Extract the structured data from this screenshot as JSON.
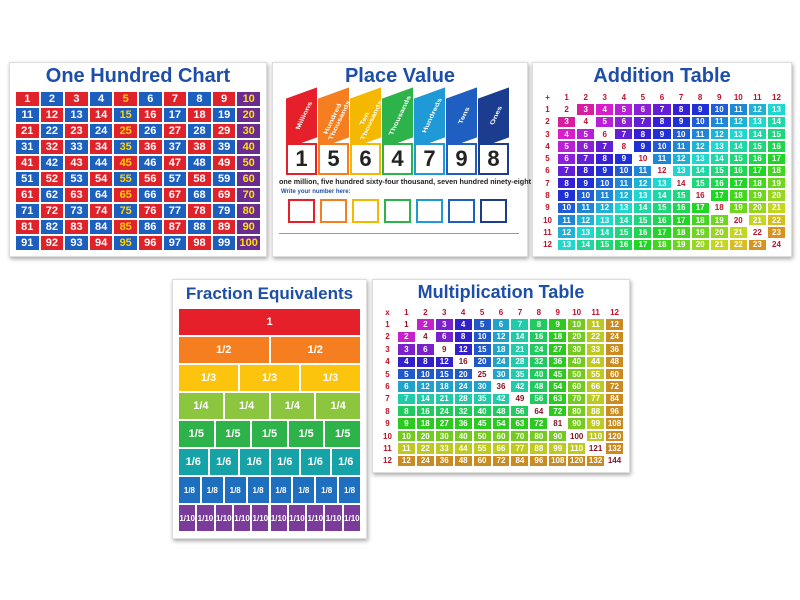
{
  "hundred_chart": {
    "title": "One Hundred Chart",
    "rows": [
      [
        1,
        2,
        3,
        4,
        5,
        6,
        7,
        8,
        9,
        10
      ],
      [
        11,
        12,
        13,
        14,
        15,
        16,
        17,
        18,
        19,
        20
      ],
      [
        21,
        22,
        23,
        24,
        25,
        26,
        27,
        28,
        29,
        30
      ],
      [
        31,
        32,
        33,
        34,
        35,
        36,
        37,
        38,
        39,
        40
      ],
      [
        41,
        42,
        43,
        44,
        45,
        46,
        47,
        48,
        49,
        50
      ],
      [
        51,
        52,
        53,
        54,
        55,
        56,
        57,
        58,
        59,
        60
      ],
      [
        61,
        62,
        63,
        64,
        65,
        66,
        67,
        68,
        69,
        70
      ],
      [
        71,
        72,
        73,
        74,
        75,
        76,
        77,
        78,
        79,
        80
      ],
      [
        81,
        82,
        83,
        84,
        85,
        86,
        87,
        88,
        89,
        90
      ],
      [
        91,
        92,
        93,
        94,
        95,
        96,
        97,
        98,
        99,
        100
      ]
    ]
  },
  "place_value": {
    "title": "Place Value",
    "headers": [
      "Millions",
      "Hundred Thousands",
      "Ten Thousands",
      "Thousands",
      "Hundreds",
      "Tens",
      "Ones"
    ],
    "digits": [
      1,
      5,
      6,
      4,
      7,
      9,
      8
    ],
    "words": "one million, five hundred sixty-four thousand, seven hundred ninety-eight",
    "prompt": "Write your number here:"
  },
  "addition_table": {
    "title": "Addition Table",
    "rows": [
      [
        "+",
        1,
        2,
        3,
        4,
        5,
        6,
        7,
        8,
        9,
        10,
        11,
        12
      ],
      [
        1,
        2,
        3,
        4,
        5,
        6,
        7,
        8,
        9,
        10,
        11,
        12,
        13
      ],
      [
        2,
        3,
        4,
        5,
        6,
        7,
        8,
        9,
        10,
        11,
        12,
        13,
        14
      ],
      [
        3,
        4,
        5,
        6,
        7,
        8,
        9,
        10,
        11,
        12,
        13,
        14,
        15
      ],
      [
        4,
        5,
        6,
        7,
        8,
        9,
        10,
        11,
        12,
        13,
        14,
        15,
        16
      ],
      [
        5,
        6,
        7,
        8,
        9,
        10,
        11,
        12,
        13,
        14,
        15,
        16,
        17
      ],
      [
        6,
        7,
        8,
        9,
        10,
        11,
        12,
        13,
        14,
        15,
        16,
        17,
        18
      ],
      [
        7,
        8,
        9,
        10,
        11,
        12,
        13,
        14,
        15,
        16,
        17,
        18,
        19
      ],
      [
        8,
        9,
        10,
        11,
        12,
        13,
        14,
        15,
        16,
        17,
        18,
        19,
        20
      ],
      [
        9,
        10,
        11,
        12,
        13,
        14,
        15,
        16,
        17,
        18,
        19,
        20,
        21
      ],
      [
        10,
        11,
        12,
        13,
        14,
        15,
        16,
        17,
        18,
        19,
        20,
        21,
        22
      ],
      [
        11,
        12,
        13,
        14,
        15,
        16,
        17,
        18,
        19,
        20,
        21,
        22,
        23
      ],
      [
        12,
        13,
        14,
        15,
        16,
        17,
        18,
        19,
        20,
        21,
        22,
        23,
        24
      ]
    ]
  },
  "fraction_equivalents": {
    "title": "Fraction Equivalents",
    "rows": [
      [
        "1"
      ],
      [
        "1/2",
        "1/2"
      ],
      [
        "1/3",
        "1/3",
        "1/3"
      ],
      [
        "1/4",
        "1/4",
        "1/4",
        "1/4"
      ],
      [
        "1/5",
        "1/5",
        "1/5",
        "1/5",
        "1/5"
      ],
      [
        "1/6",
        "1/6",
        "1/6",
        "1/6",
        "1/6",
        "1/6"
      ],
      [
        "1/8",
        "1/8",
        "1/8",
        "1/8",
        "1/8",
        "1/8",
        "1/8",
        "1/8"
      ],
      [
        "1/10",
        "1/10",
        "1/10",
        "1/10",
        "1/10",
        "1/10",
        "1/10",
        "1/10",
        "1/10",
        "1/10"
      ]
    ]
  },
  "multiplication_table": {
    "title": "Multiplication Table",
    "rows": [
      [
        "x",
        1,
        2,
        3,
        4,
        5,
        6,
        7,
        8,
        9,
        10,
        11,
        12
      ],
      [
        1,
        1,
        2,
        3,
        4,
        5,
        6,
        7,
        8,
        9,
        10,
        11,
        12
      ],
      [
        2,
        2,
        4,
        6,
        8,
        10,
        12,
        14,
        16,
        18,
        20,
        22,
        24
      ],
      [
        3,
        3,
        6,
        9,
        12,
        15,
        18,
        21,
        24,
        27,
        30,
        33,
        36
      ],
      [
        4,
        4,
        8,
        12,
        16,
        20,
        24,
        28,
        32,
        36,
        40,
        44,
        48
      ],
      [
        5,
        5,
        10,
        15,
        20,
        25,
        30,
        35,
        40,
        45,
        50,
        55,
        60
      ],
      [
        6,
        6,
        12,
        18,
        24,
        30,
        36,
        42,
        48,
        54,
        60,
        66,
        72
      ],
      [
        7,
        7,
        14,
        21,
        28,
        35,
        42,
        49,
        56,
        63,
        70,
        77,
        84
      ],
      [
        8,
        8,
        16,
        24,
        32,
        40,
        48,
        56,
        64,
        72,
        80,
        88,
        96
      ],
      [
        9,
        9,
        18,
        27,
        36,
        45,
        54,
        63,
        72,
        81,
        90,
        99,
        108
      ],
      [
        10,
        10,
        20,
        30,
        40,
        50,
        60,
        70,
        80,
        90,
        100,
        110,
        120
      ],
      [
        11,
        11,
        22,
        33,
        44,
        55,
        66,
        77,
        88,
        99,
        110,
        121,
        132
      ],
      [
        12,
        12,
        24,
        36,
        48,
        60,
        72,
        84,
        96,
        108,
        120,
        132,
        144
      ]
    ]
  }
}
